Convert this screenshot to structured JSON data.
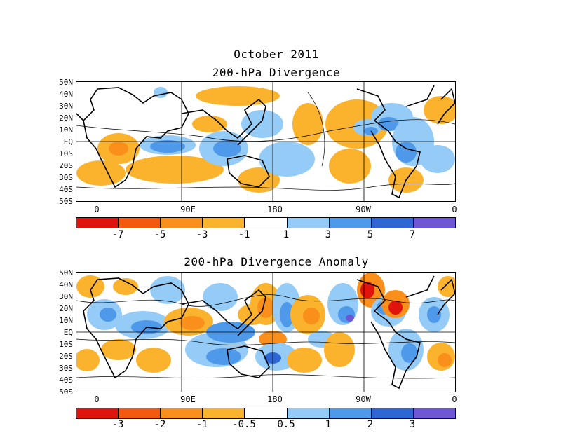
{
  "month_title": "October 2011",
  "panel1_title": "200-hPa Divergence",
  "panel2_title": "200-hPa Divergence Anomaly",
  "lat_labels": [
    "50N",
    "40N",
    "30N",
    "20N",
    "10N",
    "EQ",
    "10S",
    "20S",
    "30S",
    "40S",
    "50S"
  ],
  "lon_labels": [
    "0",
    "90E",
    "180",
    "90W",
    "0"
  ],
  "colorbar1": {
    "colors": [
      "#e0130d",
      "#f35a10",
      "#fb8f1b",
      "#fbb32e",
      "#ffffff",
      "#94cbf7",
      "#4f99ea",
      "#2d67d6",
      "#6e56d6"
    ],
    "labels": [
      "-7",
      "-5",
      "-3",
      "-1",
      "1",
      "3",
      "5",
      "7"
    ]
  },
  "colorbar2": {
    "colors": [
      "#e0130d",
      "#f35a10",
      "#fb8f1b",
      "#fbb32e",
      "#ffffff",
      "#94cbf7",
      "#4f99ea",
      "#2d67d6",
      "#6e56d6"
    ],
    "labels": [
      "-3",
      "-2",
      "-1",
      "-0.5",
      "0.5",
      "1",
      "2",
      "3"
    ]
  },
  "contour_label": "0"
}
